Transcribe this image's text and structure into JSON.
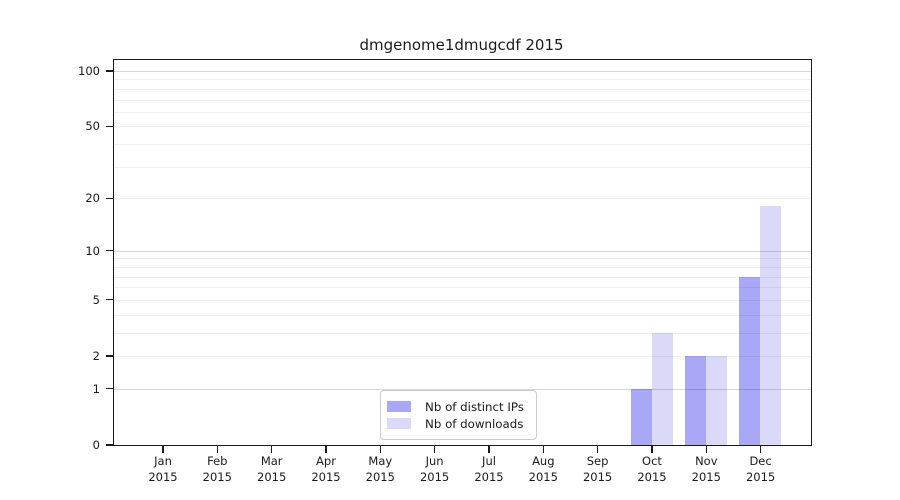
{
  "title": "dmgenome1dmugcdf 2015",
  "legend": {
    "items": [
      {
        "label": "Nb of distinct IPs",
        "color": "#a8a8f6"
      },
      {
        "label": "Nb of downloads",
        "color": "#dadaf8"
      }
    ]
  },
  "chart_data": {
    "type": "bar",
    "title": "dmgenome1dmugcdf 2015",
    "categories": [
      "Jan",
      "Feb",
      "Mar",
      "Apr",
      "May",
      "Jun",
      "Jul",
      "Aug",
      "Sep",
      "Oct",
      "Nov",
      "Dec"
    ],
    "year_label": "2015",
    "series": [
      {
        "name": "Nb of distinct IPs",
        "color": "#a8a8f6",
        "values": [
          0,
          0,
          0,
          0,
          0,
          0,
          0,
          0,
          0,
          1,
          2,
          7
        ]
      },
      {
        "name": "Nb of downloads",
        "color": "#dadaf8",
        "values": [
          0,
          0,
          0,
          0,
          0,
          0,
          0,
          0,
          0,
          3,
          2,
          18
        ]
      }
    ],
    "xlabel": "",
    "ylabel": "",
    "yscale": "symlog(log(1+v))",
    "ylim": [
      0,
      113
    ],
    "y_ticks": [
      0,
      1,
      2,
      5,
      10,
      20,
      50,
      100
    ],
    "y_major_gridlines": [
      1,
      10,
      100
    ],
    "y_minor_gridlines": [
      2,
      3,
      4,
      5,
      6,
      7,
      8,
      9,
      20,
      30,
      40,
      50,
      60,
      70,
      80,
      90
    ],
    "grid": "horizontal",
    "legend_position": "lower center"
  }
}
